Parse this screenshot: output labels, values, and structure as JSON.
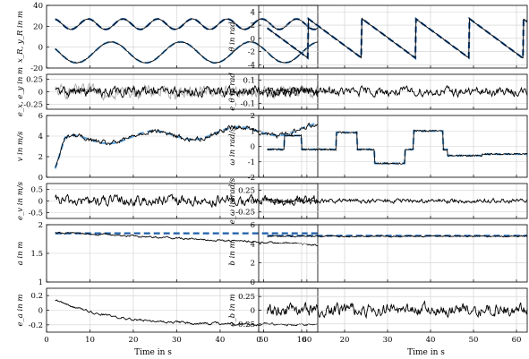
{
  "chart_data": {
    "type": "line",
    "x_label": "Time in s",
    "x_ticks": [
      0,
      10,
      20,
      30,
      40,
      50,
      60
    ],
    "xlim": [
      0,
      62.5
    ],
    "colors": {
      "estimate": "#000000",
      "reference": "#1f5fa8",
      "reference_light": "#5fa3dc",
      "error_secondary": "#a8a8a8"
    },
    "panels": [
      {
        "key": "xy",
        "ylabel": "x_R, y_R in m",
        "ylim": [
          -20,
          40
        ],
        "yticks": [
          -20,
          0,
          20,
          40
        ],
        "series": [
          {
            "kind": "sine",
            "offset": 22,
            "amplitude": 5,
            "period": 8.0,
            "phase": 0.3,
            "noise": 0.2,
            "ref": true,
            "ref_dark": true
          },
          {
            "kind": "sine",
            "offset": -5,
            "amplitude": 10,
            "period": 16.0,
            "phase": 2.0,
            "noise": 0.3,
            "ref": true,
            "ref_dark": false
          }
        ]
      },
      {
        "key": "theta",
        "ylabel": "θ in rad",
        "ylim": [
          -4.5,
          5
        ],
        "yticks": [
          -4,
          -2,
          0,
          2,
          4
        ],
        "series": [
          {
            "kind": "sawtooth",
            "noise": 0.04,
            "ref": true,
            "ref_dark": true
          }
        ]
      },
      {
        "key": "e_xy",
        "ylabel": "e_x, e_y in m",
        "ylim": [
          -0.35,
          0.35
        ],
        "yticks": [
          -0.25,
          0,
          0.25
        ],
        "series": [
          {
            "kind": "noise",
            "amplitude": 0.1,
            "color": "error_secondary"
          },
          {
            "kind": "noise",
            "amplitude": 0.08,
            "color": "estimate"
          }
        ]
      },
      {
        "key": "e_theta",
        "ylabel": "e_θ in rad",
        "ylim": [
          -0.15,
          0.15
        ],
        "yticks": [
          -0.1,
          0,
          0.1
        ],
        "series": [
          {
            "kind": "noise",
            "amplitude": 0.03,
            "color": "estimate"
          }
        ]
      },
      {
        "key": "v",
        "ylabel": "v in m/s",
        "ylim": [
          0,
          6
        ],
        "yticks": [
          0,
          2,
          4,
          6
        ],
        "series": [
          {
            "kind": "velocity",
            "noise": 0.18,
            "ref": true,
            "ref_dark": false
          }
        ]
      },
      {
        "key": "omega",
        "ylabel": "ω in rad/s",
        "ylim": [
          -2,
          2
        ],
        "yticks": [
          -2,
          -1,
          0,
          1,
          2
        ],
        "series": [
          {
            "kind": "omega",
            "noise": 0.05,
            "ref": true,
            "ref_dark": false
          }
        ]
      },
      {
        "key": "e_v",
        "ylabel": "e_v in m/s",
        "ylim": [
          -0.75,
          0.75
        ],
        "yticks": [
          -0.5,
          0,
          0.5
        ],
        "series": [
          {
            "kind": "noise",
            "amplitude": 0.18,
            "color": "estimate"
          }
        ]
      },
      {
        "key": "e_omega",
        "ylabel": "e_ω in rad/s",
        "ylim": [
          -0.4,
          0.4
        ],
        "yticks": [
          -0.25,
          0,
          0.25
        ],
        "series": [
          {
            "kind": "noise",
            "amplitude": 0.04,
            "color": "estimate"
          }
        ]
      },
      {
        "key": "a",
        "ylabel": "a in m",
        "ylim": [
          1.0,
          2.0
        ],
        "yticks": [
          1,
          1.5,
          2
        ],
        "series": [
          {
            "kind": "decay",
            "start": 1.87,
            "end": 1.65,
            "noise": 0.012,
            "refconst": 1.85
          }
        ]
      },
      {
        "key": "b",
        "ylabel": "b in m",
        "ylim": [
          0,
          6
        ],
        "yticks": [
          0,
          2,
          4,
          6
        ],
        "series": [
          {
            "kind": "const",
            "value": 4.8,
            "noise": 0.06,
            "refconst": 4.85
          }
        ]
      },
      {
        "key": "e_a",
        "ylabel": "e_a in m",
        "ylim": [
          -0.3,
          0.3
        ],
        "yticks": [
          -0.2,
          0,
          0.2
        ],
        "series": [
          {
            "kind": "decay_err",
            "start": 0.15,
            "end": -0.2,
            "noise": 0.012
          }
        ]
      },
      {
        "key": "e_b",
        "ylabel": "e_b in m",
        "ylim": [
          -0.4,
          0.4
        ],
        "yticks": [
          -0.25,
          0,
          0.25
        ],
        "series": [
          {
            "kind": "noise",
            "amplitude": 0.09,
            "color": "estimate"
          }
        ]
      }
    ]
  }
}
